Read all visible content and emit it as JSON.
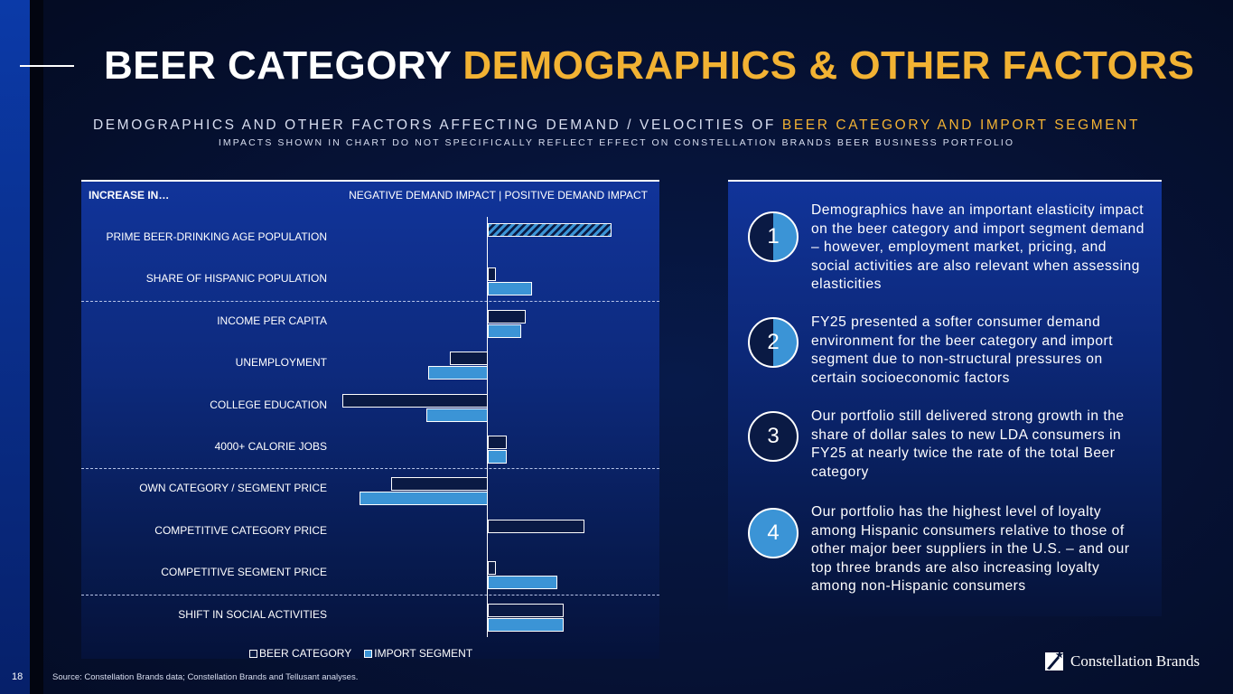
{
  "page": {
    "number": "18",
    "title_white": "BEER CATEGORY",
    "title_gold": "DEMOGRAPHICS & OTHER FACTORS",
    "subtitle_main": "DEMOGRAPHICS AND OTHER FACTORS AFFECTING DEMAND / VELOCITIES OF",
    "subtitle_highlight": "BEER CATEGORY AND IMPORT SEGMENT",
    "subtitle_secondary": "IMPACTS SHOWN IN CHART DO NOT SPECIFICALLY REFLECT EFFECT ON CONSTELLATION BRANDS BEER BUSINESS PORTFOLIO",
    "source": "Source:  Constellation Brands data; Constellation Brands and Tellusant analyses.",
    "logo_text": "Constellation Brands"
  },
  "colors": {
    "gold": "#f2b233",
    "beer_category": "#0a1a44",
    "import_segment": "#3b94d6"
  },
  "chart_data": {
    "type": "bar",
    "orientation": "horizontal",
    "header_left": "INCREASE IN…",
    "header_right": "NEGATIVE DEMAND IMPACT | POSITIVE DEMAND IMPACT",
    "xlim": [
      -1.2,
      1.2
    ],
    "categories": [
      "PRIME BEER-DRINKING AGE POPULATION",
      "SHARE OF HISPANIC POPULATION",
      "INCOME PER CAPITA",
      "UNEMPLOYMENT",
      "COLLEGE EDUCATION",
      "4000+ CALORIE JOBS",
      "OWN CATEGORY / SEGMENT PRICE",
      "COMPETITIVE CATEGORY PRICE",
      "COMPETITIVE SEGMENT PRICE",
      "SHIFT IN SOCIAL ACTIVITIES"
    ],
    "series": [
      {
        "name": "BEER CATEGORY",
        "values": [
          0.78,
          0.05,
          0.24,
          -0.24,
          -0.92,
          0.12,
          -0.61,
          0.61,
          0.05,
          0.48
        ]
      },
      {
        "name": "IMPORT SEGMENT",
        "values": [
          0.78,
          0.28,
          0.21,
          -0.38,
          -0.39,
          0.12,
          -0.81,
          0.0,
          0.44,
          0.48
        ]
      }
    ],
    "combined_bar": "PRIME BEER-DRINKING AGE POPULATION",
    "group_dividers_after": [
      "SHARE OF HISPANIC POPULATION",
      "4000+ CALORIE JOBS",
      "COMPETITIVE SEGMENT PRICE"
    ],
    "legend": [
      "BEER CATEGORY",
      "IMPORT SEGMENT"
    ]
  },
  "points": [
    {
      "number": "1",
      "text": "Demographics have an important elasticity impact on the beer category and import segment demand – however, employment market, pricing, and social activities are also relevant when assessing elasticities"
    },
    {
      "number": "2",
      "text": "FY25 presented a softer consumer demand environment for the beer category and import segment due to non-structural pressures on certain socioeconomic factors"
    },
    {
      "number": "3",
      "text": "Our portfolio still delivered strong growth in the share of dollar sales to new LDA consumers in FY25 at nearly twice the rate of the total Beer category"
    },
    {
      "number": "4",
      "text": "Our portfolio has the highest level of loyalty among Hispanic consumers relative to those of other major beer suppliers in the U.S. – and our top three brands are also increasing loyalty among non-Hispanic consumers"
    }
  ]
}
